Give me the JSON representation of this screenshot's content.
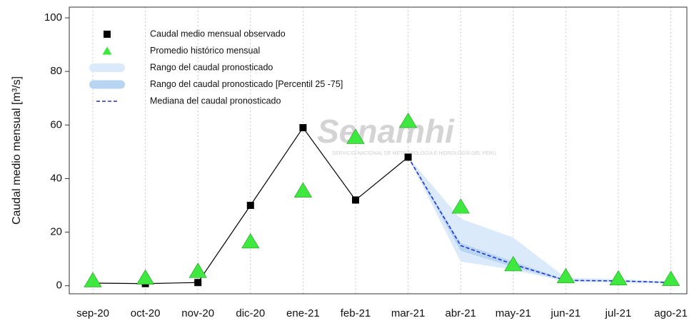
{
  "chart_data": {
    "type": "line",
    "ylabel": "Caudal medio mensual  [m³/s]",
    "watermark": {
      "title": "Senamhi",
      "subtitle": "SERVICIO NACIONAL DE METEOROLOGÍA E HIDROLOGÍA DEL PERÚ"
    },
    "categories": [
      "sep-20",
      "oct-20",
      "nov-20",
      "dic-20",
      "ene-21",
      "feb-21",
      "mar-21",
      "abr-21",
      "may-21",
      "jun-21",
      "jul-21",
      "ago-21"
    ],
    "ylim": [
      -3,
      104
    ],
    "yticks": [
      0,
      20,
      40,
      60,
      80,
      100
    ],
    "grid": true,
    "series": [
      {
        "name": "Caudal medio mensual observado",
        "kind": "observed",
        "color": "#000000",
        "values": [
          1,
          0.8,
          1.2,
          30,
          59,
          32,
          48,
          null,
          null,
          null,
          null,
          null
        ]
      },
      {
        "name": "Promedio histórico mensual",
        "kind": "triangles",
        "color": "#3ee83e",
        "values": [
          1.5,
          2.5,
          5,
          16,
          35,
          55,
          61,
          29,
          7.5,
          3,
          2.2,
          2
        ]
      },
      {
        "name": "Rango del caudal pronosticado",
        "kind": "band",
        "color": "#dbeafb",
        "lower": [
          null,
          null,
          null,
          null,
          null,
          null,
          48,
          9,
          6,
          1.5,
          1.2,
          0.8
        ],
        "upper": [
          null,
          null,
          null,
          null,
          null,
          null,
          48,
          25,
          18,
          3,
          2.5,
          1.5
        ]
      },
      {
        "name": "Rango del caudal pronosticado [Percentil 25 -75]",
        "kind": "band",
        "color": "#b7d5f3",
        "lower": [
          null,
          null,
          null,
          null,
          null,
          null,
          48,
          13,
          7,
          1.8,
          1.6,
          1.0
        ],
        "upper": [
          null,
          null,
          null,
          null,
          null,
          null,
          48,
          16,
          9,
          2.2,
          2,
          1.3
        ]
      },
      {
        "name": "Mediana del caudal pronosticado",
        "kind": "dashed",
        "color": "#2233cc",
        "values": [
          null,
          null,
          null,
          null,
          null,
          null,
          48,
          15,
          8,
          2,
          1.8,
          1.2
        ]
      }
    ]
  }
}
